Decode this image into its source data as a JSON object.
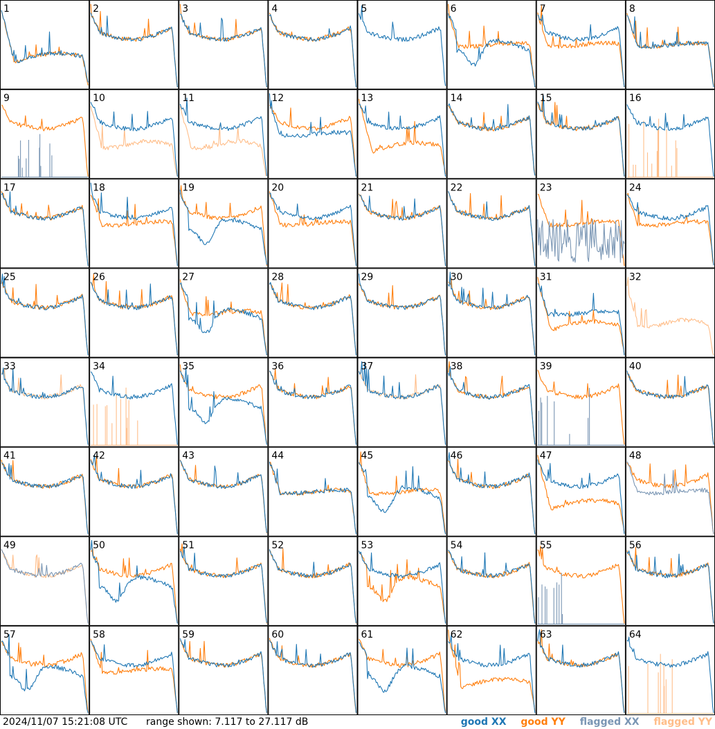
{
  "footer": {
    "timestamp": "2024/11/07 15:21:08 UTC",
    "range_text": "range shown: 7.117 to 27.117 dB"
  },
  "legend": [
    {
      "label": "good XX",
      "color": "#1f77b4"
    },
    {
      "label": "good YY",
      "color": "#ff7f0e"
    },
    {
      "label": "flagged XX",
      "color": "#7a96b4"
    },
    {
      "label": "flagged YY",
      "color": "#ffbe8a"
    }
  ],
  "chart_data": {
    "type": "line",
    "grid": {
      "rows": 8,
      "cols": 8
    },
    "y_range_db": [
      7.117,
      27.117
    ],
    "series_colors": {
      "good_xx": "#1f77b4",
      "good_yy": "#ff7f0e",
      "flagged_xx": "#7a96b4",
      "flagged_yy": "#ffbe8a"
    },
    "panels": [
      {
        "label": "1",
        "xx": "good",
        "yy": "good",
        "xx_shape": "drop",
        "yy_shape": "drop"
      },
      {
        "label": "2",
        "xx": "good",
        "yy": "good",
        "xx_shape": "bowl",
        "yy_shape": "bowl"
      },
      {
        "label": "3",
        "xx": "good",
        "yy": "good",
        "xx_shape": "bowl",
        "yy_shape": "bowl"
      },
      {
        "label": "4",
        "xx": "good",
        "yy": "good",
        "xx_shape": "bowl",
        "yy_shape": "bowl"
      },
      {
        "label": "5",
        "xx": "good",
        "yy": "off",
        "xx_shape": "bowl",
        "yy_shape": "none"
      },
      {
        "label": "6",
        "xx": "good",
        "yy": "good",
        "xx_shape": "dip",
        "yy_shape": "flat"
      },
      {
        "label": "7",
        "xx": "good",
        "yy": "good",
        "xx_shape": "bowl",
        "yy_shape": "flat"
      },
      {
        "label": "8",
        "xx": "good",
        "yy": "good",
        "xx_shape": "flat",
        "yy_shape": "flat"
      },
      {
        "label": "9",
        "xx": "spikes",
        "yy": "good",
        "xx_shape": "zero",
        "yy_shape": "bowl"
      },
      {
        "label": "10",
        "xx": "good",
        "yy": "flagged",
        "xx_shape": "bowl",
        "yy_shape": "lowflat"
      },
      {
        "label": "11",
        "xx": "good",
        "yy": "flagged",
        "xx_shape": "bowl",
        "yy_shape": "lowflat"
      },
      {
        "label": "12",
        "xx": "good",
        "yy": "good",
        "xx_shape": "flat",
        "yy_shape": "bowl"
      },
      {
        "label": "13",
        "xx": "good",
        "yy": "good",
        "xx_shape": "bowl",
        "yy_shape": "drop"
      },
      {
        "label": "14",
        "xx": "good",
        "yy": "good",
        "xx_shape": "bowl",
        "yy_shape": "bowl"
      },
      {
        "label": "15",
        "xx": "good",
        "yy": "good",
        "xx_shape": "bowl",
        "yy_shape": "bowl"
      },
      {
        "label": "16",
        "xx": "good",
        "yy": "spikes",
        "xx_shape": "bowl",
        "yy_shape": "zero"
      },
      {
        "label": "17",
        "xx": "good",
        "yy": "good",
        "xx_shape": "bowl",
        "yy_shape": "bowl"
      },
      {
        "label": "18",
        "xx": "good",
        "yy": "good",
        "xx_shape": "bowl",
        "yy_shape": "flat"
      },
      {
        "label": "19",
        "xx": "good",
        "yy": "good",
        "xx_shape": "dip",
        "yy_shape": "bowl"
      },
      {
        "label": "20",
        "xx": "good",
        "yy": "good",
        "xx_shape": "bowl",
        "yy_shape": "flat"
      },
      {
        "label": "21",
        "xx": "good",
        "yy": "good",
        "xx_shape": "bowl",
        "yy_shape": "bowl"
      },
      {
        "label": "22",
        "xx": "good",
        "yy": "good",
        "xx_shape": "bowl",
        "yy_shape": "bowl"
      },
      {
        "label": "23",
        "xx": "noise",
        "yy": "good",
        "xx_shape": "noise",
        "yy_shape": "flat"
      },
      {
        "label": "24",
        "xx": "good",
        "yy": "good",
        "xx_shape": "bowl",
        "yy_shape": "flat"
      },
      {
        "label": "25",
        "xx": "good",
        "yy": "good",
        "xx_shape": "bowl",
        "yy_shape": "bowl"
      },
      {
        "label": "26",
        "xx": "good",
        "yy": "good",
        "xx_shape": "bowl",
        "yy_shape": "bowl"
      },
      {
        "label": "27",
        "xx": "good",
        "yy": "good",
        "xx_shape": "dip",
        "yy_shape": "flat"
      },
      {
        "label": "28",
        "xx": "good",
        "yy": "good",
        "xx_shape": "bowl",
        "yy_shape": "bowl"
      },
      {
        "label": "29",
        "xx": "good",
        "yy": "good",
        "xx_shape": "bowl",
        "yy_shape": "bowl"
      },
      {
        "label": "30",
        "xx": "good",
        "yy": "good",
        "xx_shape": "bowl",
        "yy_shape": "bowl"
      },
      {
        "label": "31",
        "xx": "good",
        "yy": "good",
        "xx_shape": "flat",
        "yy_shape": "drop"
      },
      {
        "label": "32",
        "xx": "off",
        "yy": "flagged",
        "xx_shape": "none",
        "yy_shape": "lowflat"
      },
      {
        "label": "33",
        "xx": "good",
        "yy": "flagged",
        "xx_shape": "bowl",
        "yy_shape": "bowl"
      },
      {
        "label": "34",
        "xx": "good",
        "yy": "spikes",
        "xx_shape": "bowl",
        "yy_shape": "zero"
      },
      {
        "label": "35",
        "xx": "good",
        "yy": "good",
        "xx_shape": "dip",
        "yy_shape": "bowl"
      },
      {
        "label": "36",
        "xx": "good",
        "yy": "good",
        "xx_shape": "bowl",
        "yy_shape": "bowl"
      },
      {
        "label": "37",
        "xx": "good",
        "yy": "flagged",
        "xx_shape": "bowl",
        "yy_shape": "bowl"
      },
      {
        "label": "38",
        "xx": "good",
        "yy": "good",
        "xx_shape": "bowl",
        "yy_shape": "bowl"
      },
      {
        "label": "39",
        "xx": "spikes",
        "yy": "good",
        "xx_shape": "zero",
        "yy_shape": "bowl"
      },
      {
        "label": "40",
        "xx": "good",
        "yy": "good",
        "xx_shape": "bowl",
        "yy_shape": "bowl"
      },
      {
        "label": "41",
        "xx": "good",
        "yy": "good",
        "xx_shape": "bowl",
        "yy_shape": "bowl"
      },
      {
        "label": "42",
        "xx": "good",
        "yy": "good",
        "xx_shape": "bowl",
        "yy_shape": "bowl"
      },
      {
        "label": "43",
        "xx": "good",
        "yy": "good",
        "xx_shape": "bowl",
        "yy_shape": "bowl"
      },
      {
        "label": "44",
        "xx": "good",
        "yy": "good",
        "xx_shape": "flat",
        "yy_shape": "flat"
      },
      {
        "label": "45",
        "xx": "good",
        "yy": "good",
        "xx_shape": "dip",
        "yy_shape": "flat"
      },
      {
        "label": "46",
        "xx": "good",
        "yy": "good",
        "xx_shape": "bowl",
        "yy_shape": "bowl"
      },
      {
        "label": "47",
        "xx": "good",
        "yy": "good",
        "xx_shape": "bowl",
        "yy_shape": "drop"
      },
      {
        "label": "48",
        "xx": "flagged",
        "yy": "good",
        "xx_shape": "flat",
        "yy_shape": "bowl"
      },
      {
        "label": "49",
        "xx": "flagged",
        "yy": "flagged",
        "xx_shape": "bowl",
        "yy_shape": "bowl"
      },
      {
        "label": "50",
        "xx": "good",
        "yy": "good",
        "xx_shape": "dip",
        "yy_shape": "bowl"
      },
      {
        "label": "51",
        "xx": "good",
        "yy": "good",
        "xx_shape": "bowl",
        "yy_shape": "bowl"
      },
      {
        "label": "52",
        "xx": "good",
        "yy": "good",
        "xx_shape": "bowl",
        "yy_shape": "bowl"
      },
      {
        "label": "53",
        "xx": "good",
        "yy": "good",
        "xx_shape": "bowl",
        "yy_shape": "dip"
      },
      {
        "label": "54",
        "xx": "good",
        "yy": "good",
        "xx_shape": "bowl",
        "yy_shape": "bowl"
      },
      {
        "label": "55",
        "xx": "spikes",
        "yy": "good",
        "xx_shape": "zero",
        "yy_shape": "bowl"
      },
      {
        "label": "56",
        "xx": "good",
        "yy": "good",
        "xx_shape": "bowl",
        "yy_shape": "bowl"
      },
      {
        "label": "57",
        "xx": "good",
        "yy": "good",
        "xx_shape": "dip",
        "yy_shape": "bowl"
      },
      {
        "label": "58",
        "xx": "good",
        "yy": "good",
        "xx_shape": "bowl",
        "yy_shape": "flat"
      },
      {
        "label": "59",
        "xx": "good",
        "yy": "good",
        "xx_shape": "bowl",
        "yy_shape": "bowl"
      },
      {
        "label": "60",
        "xx": "good",
        "yy": "good",
        "xx_shape": "bowl",
        "yy_shape": "bowl"
      },
      {
        "label": "61",
        "xx": "good",
        "yy": "good",
        "xx_shape": "dip",
        "yy_shape": "bowl"
      },
      {
        "label": "62",
        "xx": "good",
        "yy": "good",
        "xx_shape": "bowl",
        "yy_shape": "drop"
      },
      {
        "label": "63",
        "xx": "good",
        "yy": "good",
        "xx_shape": "bowl",
        "yy_shape": "bowl"
      },
      {
        "label": "64",
        "xx": "good",
        "yy": "spikes",
        "xx_shape": "bowl",
        "yy_shape": "zero"
      }
    ]
  }
}
